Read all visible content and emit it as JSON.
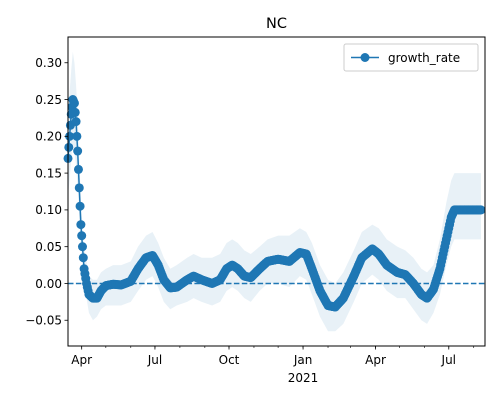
{
  "chart_data": {
    "type": "line",
    "title": "NC",
    "xlabel": "",
    "ylabel": "",
    "x_start": "2020-03-15",
    "x_end": "2021-08-15",
    "x_ticks": [
      {
        "date": "2020-04-01",
        "label": "Apr"
      },
      {
        "date": "2020-07-01",
        "label": "Jul"
      },
      {
        "date": "2020-10-01",
        "label": "Oct"
      },
      {
        "date": "2021-01-01",
        "label": "Jan"
      },
      {
        "date": "2021-04-01",
        "label": "Apr"
      },
      {
        "date": "2021-07-01",
        "label": "Jul"
      }
    ],
    "x_year_label": {
      "date": "2021-01-01",
      "label": "2021"
    },
    "ylim": [
      -0.085,
      0.335
    ],
    "y_ticks": [
      -0.05,
      0.0,
      0.05,
      0.1,
      0.15,
      0.2,
      0.25,
      0.3
    ],
    "y_tick_labels": [
      "−0.05",
      "0.00",
      "0.05",
      "0.10",
      "0.15",
      "0.20",
      "0.25",
      "0.30"
    ],
    "reference_line": {
      "y": 0.0,
      "style": "dashed",
      "color": "#1f77b4"
    },
    "legend": {
      "placement": "top-right",
      "label": "growth_rate"
    },
    "colors": {
      "series": "#1f77b4",
      "band": "#1f77b4"
    },
    "series": [
      {
        "name": "growth_rate",
        "points": [
          {
            "x": "2020-03-15",
            "y": 0.17,
            "lo": 0.12,
            "hi": 0.23
          },
          {
            "x": "2020-03-17",
            "y": 0.2,
            "lo": 0.14,
            "hi": 0.26
          },
          {
            "x": "2020-03-19",
            "y": 0.23,
            "lo": 0.17,
            "hi": 0.29
          },
          {
            "x": "2020-03-21",
            "y": 0.25,
            "lo": 0.19,
            "hi": 0.315
          },
          {
            "x": "2020-03-23",
            "y": 0.245,
            "lo": 0.18,
            "hi": 0.3
          },
          {
            "x": "2020-03-25",
            "y": 0.22,
            "lo": 0.16,
            "hi": 0.27
          },
          {
            "x": "2020-03-27",
            "y": 0.18,
            "lo": 0.13,
            "hi": 0.23
          },
          {
            "x": "2020-03-29",
            "y": 0.13,
            "lo": 0.09,
            "hi": 0.17
          },
          {
            "x": "2020-03-31",
            "y": 0.08,
            "lo": 0.05,
            "hi": 0.11
          },
          {
            "x": "2020-04-02",
            "y": 0.05,
            "lo": 0.025,
            "hi": 0.08
          },
          {
            "x": "2020-04-04",
            "y": 0.02,
            "lo": 0.0,
            "hi": 0.05
          },
          {
            "x": "2020-04-07",
            "y": 0.0,
            "lo": -0.02,
            "hi": 0.03
          },
          {
            "x": "2020-04-10",
            "y": -0.015,
            "lo": -0.04,
            "hi": 0.01
          },
          {
            "x": "2020-04-15",
            "y": -0.02,
            "lo": -0.05,
            "hi": 0.005
          },
          {
            "x": "2020-04-20",
            "y": -0.02,
            "lo": -0.045,
            "hi": 0.005
          },
          {
            "x": "2020-04-25",
            "y": -0.01,
            "lo": -0.035,
            "hi": 0.015
          },
          {
            "x": "2020-05-01",
            "y": -0.003,
            "lo": -0.03,
            "hi": 0.02
          },
          {
            "x": "2020-05-10",
            "y": -0.001,
            "lo": -0.03,
            "hi": 0.025
          },
          {
            "x": "2020-05-20",
            "y": -0.002,
            "lo": -0.03,
            "hi": 0.025
          },
          {
            "x": "2020-06-01",
            "y": 0.003,
            "lo": -0.025,
            "hi": 0.03
          },
          {
            "x": "2020-06-10",
            "y": 0.02,
            "lo": -0.01,
            "hi": 0.05
          },
          {
            "x": "2020-06-20",
            "y": 0.035,
            "lo": 0.005,
            "hi": 0.065
          },
          {
            "x": "2020-06-28",
            "y": 0.038,
            "lo": 0.01,
            "hi": 0.07
          },
          {
            "x": "2020-07-05",
            "y": 0.025,
            "lo": -0.005,
            "hi": 0.055
          },
          {
            "x": "2020-07-12",
            "y": 0.005,
            "lo": -0.025,
            "hi": 0.035
          },
          {
            "x": "2020-07-20",
            "y": -0.006,
            "lo": -0.035,
            "hi": 0.02
          },
          {
            "x": "2020-07-28",
            "y": -0.005,
            "lo": -0.03,
            "hi": 0.025
          },
          {
            "x": "2020-08-10",
            "y": 0.005,
            "lo": -0.025,
            "hi": 0.035
          },
          {
            "x": "2020-08-18",
            "y": 0.01,
            "lo": -0.02,
            "hi": 0.04
          },
          {
            "x": "2020-08-28",
            "y": 0.005,
            "lo": -0.025,
            "hi": 0.035
          },
          {
            "x": "2020-09-10",
            "y": 0.0,
            "lo": -0.03,
            "hi": 0.035
          },
          {
            "x": "2020-09-20",
            "y": 0.005,
            "lo": -0.025,
            "hi": 0.04
          },
          {
            "x": "2020-09-28",
            "y": 0.02,
            "lo": -0.01,
            "hi": 0.055
          },
          {
            "x": "2020-10-05",
            "y": 0.025,
            "lo": -0.005,
            "hi": 0.06
          },
          {
            "x": "2020-10-12",
            "y": 0.02,
            "lo": -0.01,
            "hi": 0.055
          },
          {
            "x": "2020-10-20",
            "y": 0.01,
            "lo": -0.02,
            "hi": 0.045
          },
          {
            "x": "2020-10-28",
            "y": 0.008,
            "lo": -0.025,
            "hi": 0.04
          },
          {
            "x": "2020-11-08",
            "y": 0.02,
            "lo": -0.01,
            "hi": 0.05
          },
          {
            "x": "2020-11-18",
            "y": 0.03,
            "lo": 0.0,
            "hi": 0.06
          },
          {
            "x": "2020-12-01",
            "y": 0.033,
            "lo": 0.0,
            "hi": 0.065
          },
          {
            "x": "2020-12-15",
            "y": 0.03,
            "lo": -0.005,
            "hi": 0.065
          },
          {
            "x": "2020-12-28",
            "y": 0.042,
            "lo": 0.01,
            "hi": 0.075
          },
          {
            "x": "2021-01-05",
            "y": 0.04,
            "lo": 0.005,
            "hi": 0.07
          },
          {
            "x": "2021-01-12",
            "y": 0.02,
            "lo": -0.015,
            "hi": 0.055
          },
          {
            "x": "2021-01-22",
            "y": -0.01,
            "lo": -0.045,
            "hi": 0.025
          },
          {
            "x": "2021-02-01",
            "y": -0.03,
            "lo": -0.065,
            "hi": 0.005
          },
          {
            "x": "2021-02-10",
            "y": -0.032,
            "lo": -0.065,
            "hi": 0.0
          },
          {
            "x": "2021-02-20",
            "y": -0.02,
            "lo": -0.055,
            "hi": 0.015
          },
          {
            "x": "2021-03-05",
            "y": 0.01,
            "lo": -0.025,
            "hi": 0.045
          },
          {
            "x": "2021-03-15",
            "y": 0.035,
            "lo": 0.0,
            "hi": 0.07
          },
          {
            "x": "2021-03-28",
            "y": 0.047,
            "lo": 0.012,
            "hi": 0.08
          },
          {
            "x": "2021-04-05",
            "y": 0.04,
            "lo": 0.005,
            "hi": 0.075
          },
          {
            "x": "2021-04-15",
            "y": 0.025,
            "lo": -0.01,
            "hi": 0.06
          },
          {
            "x": "2021-04-28",
            "y": 0.015,
            "lo": -0.02,
            "hi": 0.05
          },
          {
            "x": "2021-05-08",
            "y": 0.012,
            "lo": -0.02,
            "hi": 0.045
          },
          {
            "x": "2021-05-18",
            "y": 0.0,
            "lo": -0.035,
            "hi": 0.035
          },
          {
            "x": "2021-05-28",
            "y": -0.015,
            "lo": -0.05,
            "hi": 0.02
          },
          {
            "x": "2021-06-04",
            "y": -0.02,
            "lo": -0.055,
            "hi": 0.015
          },
          {
            "x": "2021-06-12",
            "y": -0.008,
            "lo": -0.04,
            "hi": 0.025
          },
          {
            "x": "2021-06-20",
            "y": 0.02,
            "lo": -0.015,
            "hi": 0.06
          },
          {
            "x": "2021-06-28",
            "y": 0.06,
            "lo": 0.025,
            "hi": 0.11
          },
          {
            "x": "2021-07-04",
            "y": 0.09,
            "lo": 0.05,
            "hi": 0.14
          },
          {
            "x": "2021-07-08",
            "y": 0.1,
            "lo": 0.06,
            "hi": 0.15
          },
          {
            "x": "2021-07-15",
            "y": 0.1,
            "lo": 0.06,
            "hi": 0.15
          },
          {
            "x": "2021-07-25",
            "y": 0.1,
            "lo": 0.06,
            "hi": 0.15
          },
          {
            "x": "2021-08-05",
            "y": 0.1,
            "lo": 0.06,
            "hi": 0.15
          },
          {
            "x": "2021-08-10",
            "y": 0.1,
            "lo": 0.06,
            "hi": 0.15
          }
        ]
      }
    ]
  }
}
